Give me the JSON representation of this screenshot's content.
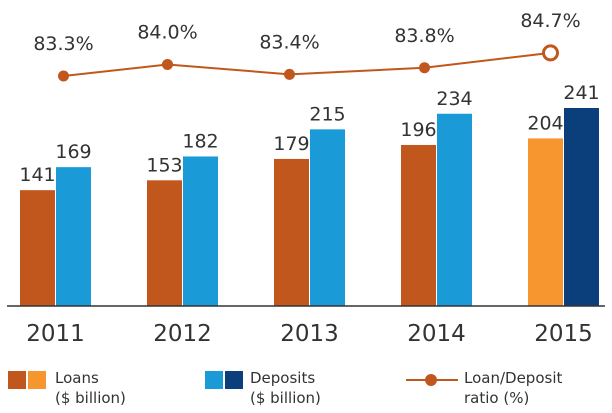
{
  "chart_data": {
    "type": "bar",
    "categories": [
      "2011",
      "2012",
      "2013",
      "2014",
      "2015"
    ],
    "series": [
      {
        "name": "Loans ($ billion)",
        "type": "bar",
        "values": [
          141,
          153,
          179,
          196,
          204
        ]
      },
      {
        "name": "Deposits ($ billion)",
        "type": "bar",
        "values": [
          169,
          182,
          215,
          234,
          241
        ]
      },
      {
        "name": "Loan/Deposit ratio (%)",
        "type": "line",
        "values": [
          83.3,
          84.0,
          83.4,
          83.8,
          84.7
        ]
      }
    ],
    "bar_labels": {
      "loans": [
        "141",
        "153",
        "179",
        "196",
        "204"
      ],
      "deposits": [
        "169",
        "182",
        "215",
        "234",
        "241"
      ]
    },
    "ratio_labels": [
      "83.3%",
      "84.0%",
      "83.4%",
      "83.8%",
      "84.7%"
    ],
    "highlight_category": "2015",
    "grid": false,
    "legend_position": "bottom"
  },
  "colors": {
    "loans": "#c2571e",
    "loans_highlight": "#f7962e",
    "deposits": "#1a9ad6",
    "deposits_highlight": "#0b3f7c",
    "ratio_line": "#c2571e",
    "axis": "#333333",
    "text": "#333333"
  },
  "legend": {
    "loans_line1": "Loans",
    "loans_line2": "($ billion)",
    "deposits_line1": "Deposits",
    "deposits_line2": "($ billion)",
    "ratio_line1": "Loan/Deposit",
    "ratio_line2": "ratio (%)"
  }
}
